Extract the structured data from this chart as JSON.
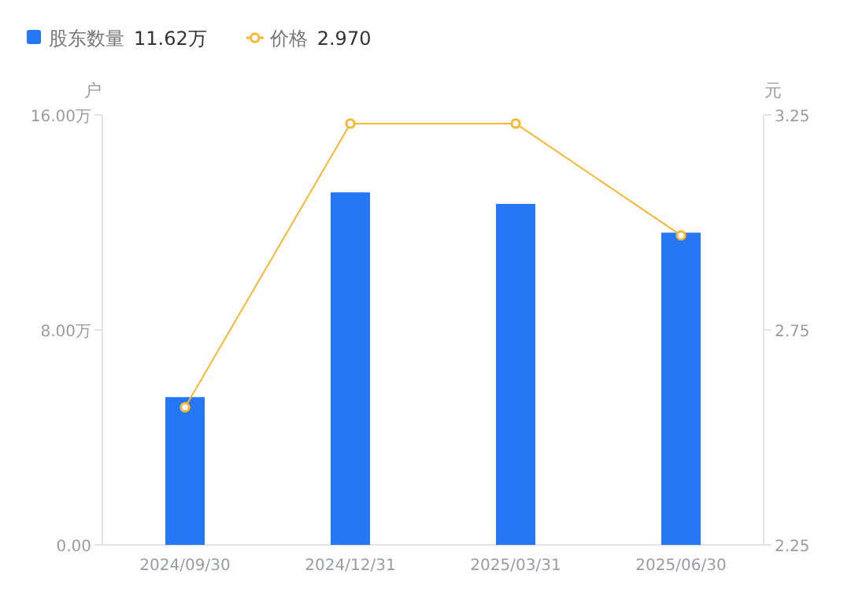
{
  "chart_data": {
    "type": "bar",
    "categories": [
      "2024/09/30",
      "2024/12/31",
      "2025/03/31",
      "2025/06/30"
    ],
    "series": [
      {
        "name": "股东数量",
        "color": "#2577f4",
        "values": [
          5.5,
          13.12,
          12.69,
          11.62
        ]
      },
      {
        "name": "价格",
        "type": "line",
        "axis": "y2",
        "color": "#f7b733",
        "marker": "circle",
        "values": [
          2.57,
          3.23,
          3.23,
          2.97
        ]
      }
    ],
    "ylabel": "户",
    "y2label": "元",
    "ylim": [
      0,
      16
    ],
    "yticks": [
      {
        "value": 0,
        "label": "0.00"
      },
      {
        "value": 8,
        "label": "8.00万"
      },
      {
        "value": 16,
        "label": "16.00万"
      }
    ],
    "y2lim": [
      2.25,
      3.25
    ],
    "y2ticks": [
      2.25,
      2.75,
      3.25
    ],
    "annotations": [
      "11.62万",
      "2.970"
    ],
    "legend": "top left",
    "grid": false
  }
}
